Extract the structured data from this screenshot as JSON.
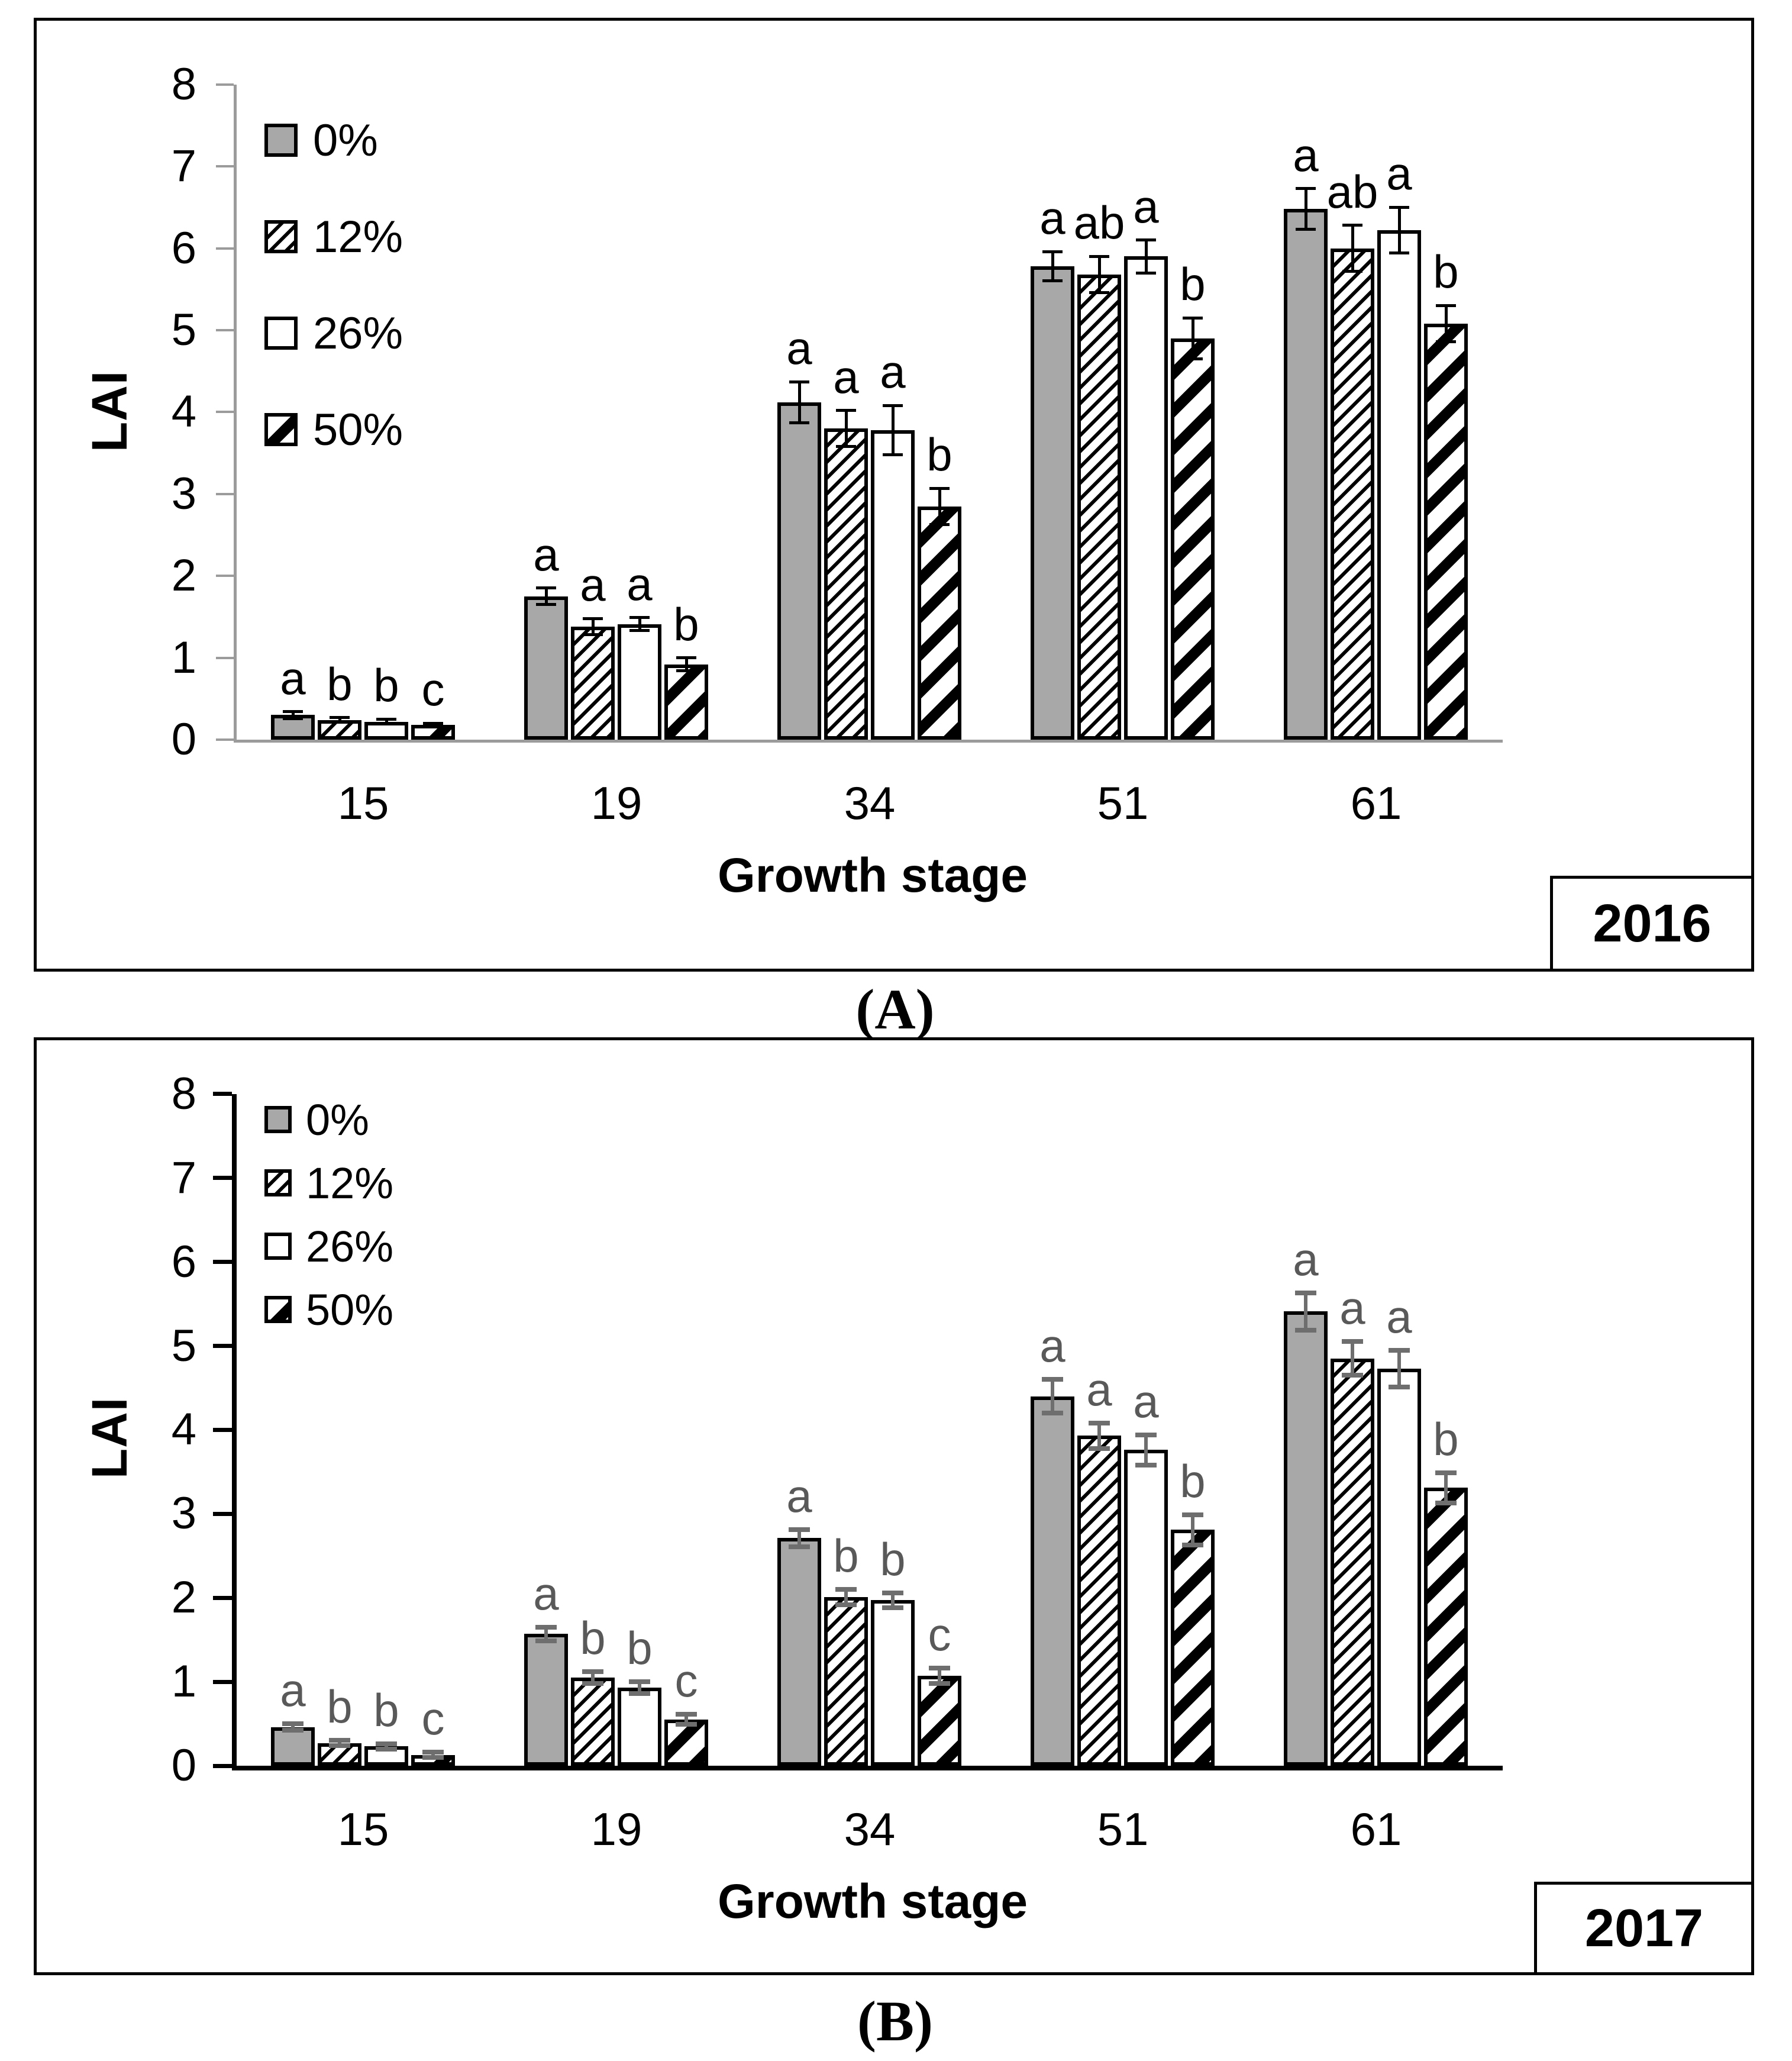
{
  "figure": {
    "panels": [
      {
        "panel_label": "(A)",
        "year": "2016",
        "y_axis_label": "LAI",
        "x_axis_label": "Growth stage"
      },
      {
        "panel_label": "(B)",
        "year": "2017",
        "y_axis_label": "LAI",
        "x_axis_label": "Growth stage"
      }
    ]
  },
  "style": {
    "bar_gray": "#a8a8a8",
    "bar_white": "#ffffff",
    "outline_black": "#000000",
    "panelA_axis_color": "#9b9b9b",
    "panelA_error_color": "#000000",
    "panelA_letter_color": "#000000",
    "panelB_axis_color": "#000000",
    "panelB_error_color": "#6e6e6e",
    "panelB_letter_color": "#595959"
  },
  "chart_data": [
    {
      "type": "bar",
      "panel": "A",
      "title": "2016",
      "xlabel": "Growth stage",
      "ylabel": "LAI",
      "ylim": [
        0,
        8
      ],
      "yticks": [
        "0",
        "1",
        "2",
        "3",
        "4",
        "5",
        "6",
        "7",
        "8"
      ],
      "grid": false,
      "legend_position": "upper-left-inside",
      "categories": [
        "15",
        "19",
        "34",
        "51",
        "61"
      ],
      "series": [
        {
          "name": "0%",
          "pattern": "solid-gray",
          "values": [
            0.3,
            1.75,
            4.12,
            5.78,
            6.48
          ],
          "errors": [
            0.04,
            0.1,
            0.25,
            0.18,
            0.25
          ],
          "sig_letters": [
            "a",
            "a",
            "a",
            "a",
            "a"
          ]
        },
        {
          "name": "12%",
          "pattern": "thin-diagonal-hatch",
          "values": [
            0.24,
            1.38,
            3.8,
            5.68,
            6.0
          ],
          "errors": [
            0.03,
            0.1,
            0.22,
            0.22,
            0.28
          ],
          "sig_letters": [
            "b",
            "a",
            "a",
            "ab",
            "ab"
          ]
        },
        {
          "name": "26%",
          "pattern": "white-empty",
          "values": [
            0.22,
            1.41,
            3.78,
            5.9,
            6.22
          ],
          "errors": [
            0.03,
            0.08,
            0.3,
            0.2,
            0.28
          ],
          "sig_letters": [
            "b",
            "a",
            "a",
            "a",
            "a"
          ]
        },
        {
          "name": "50%",
          "pattern": "bold-diagonal-hatch",
          "values": [
            0.18,
            0.92,
            2.85,
            4.9,
            5.08
          ],
          "errors": [
            0.02,
            0.08,
            0.22,
            0.25,
            0.22
          ],
          "sig_letters": [
            "c",
            "b",
            "b",
            "b",
            "b"
          ]
        }
      ]
    },
    {
      "type": "bar",
      "panel": "B",
      "title": "2017",
      "xlabel": "Growth stage",
      "ylabel": "LAI",
      "ylim": [
        0,
        8
      ],
      "yticks": [
        "0",
        "1",
        "2",
        "3",
        "4",
        "5",
        "6",
        "7",
        "8"
      ],
      "grid": false,
      "legend_position": "upper-left-inside",
      "categories": [
        "15",
        "19",
        "34",
        "51",
        "61"
      ],
      "series": [
        {
          "name": "0%",
          "pattern": "solid-gray",
          "values": [
            0.46,
            1.57,
            2.71,
            4.4,
            5.41
          ],
          "errors": [
            0.04,
            0.08,
            0.1,
            0.2,
            0.22
          ],
          "sig_letters": [
            "a",
            "a",
            "a",
            "a",
            "a"
          ]
        },
        {
          "name": "12%",
          "pattern": "thin-diagonal-hatch",
          "values": [
            0.27,
            1.05,
            2.01,
            3.93,
            4.85
          ],
          "errors": [
            0.03,
            0.07,
            0.09,
            0.15,
            0.2
          ],
          "sig_letters": [
            "b",
            "b",
            "b",
            "a",
            "a"
          ]
        },
        {
          "name": "26%",
          "pattern": "white-empty",
          "values": [
            0.23,
            0.93,
            1.97,
            3.76,
            4.73
          ],
          "errors": [
            0.03,
            0.07,
            0.09,
            0.18,
            0.22
          ],
          "sig_letters": [
            "b",
            "b",
            "b",
            "a",
            "a"
          ]
        },
        {
          "name": "50%",
          "pattern": "bold-diagonal-hatch",
          "values": [
            0.13,
            0.55,
            1.07,
            2.81,
            3.31
          ],
          "errors": [
            0.03,
            0.06,
            0.09,
            0.18,
            0.18
          ],
          "sig_letters": [
            "c",
            "c",
            "c",
            "b",
            "b"
          ]
        }
      ]
    }
  ]
}
